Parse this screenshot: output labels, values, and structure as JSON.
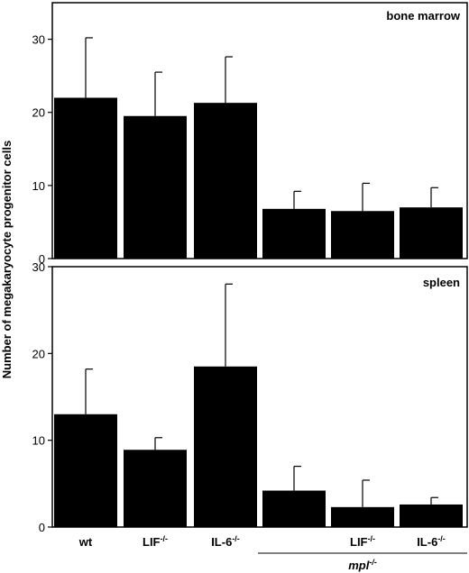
{
  "chart_data": [
    {
      "type": "bar",
      "title": "bone marrow",
      "ylabel": "Number of megakaryocyte progenitor cells",
      "ylim": [
        0,
        35
      ],
      "yticks": [
        0,
        10,
        20,
        30
      ],
      "categories": [
        {
          "main": "wt",
          "sup": ""
        },
        {
          "main": "LIF",
          "sup": "-/-"
        },
        {
          "main": "IL-6",
          "sup": "-/-"
        },
        {
          "main": "",
          "sup": ""
        },
        {
          "main": "LIF",
          "sup": "-/-"
        },
        {
          "main": "IL-6",
          "sup": "-/-"
        }
      ],
      "values": [
        22.0,
        19.5,
        21.3,
        6.8,
        6.5,
        7.0
      ],
      "errors": [
        8.2,
        6.0,
        6.3,
        2.4,
        3.8,
        2.7
      ],
      "grid": false
    },
    {
      "type": "bar",
      "title": "spleen",
      "ylabel": "Number of megakaryocyte progenitor cells",
      "ylim": [
        0,
        30
      ],
      "yticks": [
        0,
        10,
        20,
        30
      ],
      "categories": [
        {
          "main": "wt",
          "sup": ""
        },
        {
          "main": "LIF",
          "sup": "-/-"
        },
        {
          "main": "IL-6",
          "sup": "-/-"
        },
        {
          "main": "",
          "sup": ""
        },
        {
          "main": "LIF",
          "sup": "-/-"
        },
        {
          "main": "IL-6",
          "sup": "-/-"
        }
      ],
      "values": [
        13.0,
        8.9,
        18.5,
        4.2,
        2.3,
        2.6
      ],
      "errors": [
        5.2,
        1.4,
        9.5,
        2.8,
        3.1,
        0.8
      ],
      "grid": false
    }
  ],
  "group_label": {
    "main": "mpl",
    "sup": "-/-"
  },
  "ylabel": "Number of megakaryocyte progenitor cells"
}
